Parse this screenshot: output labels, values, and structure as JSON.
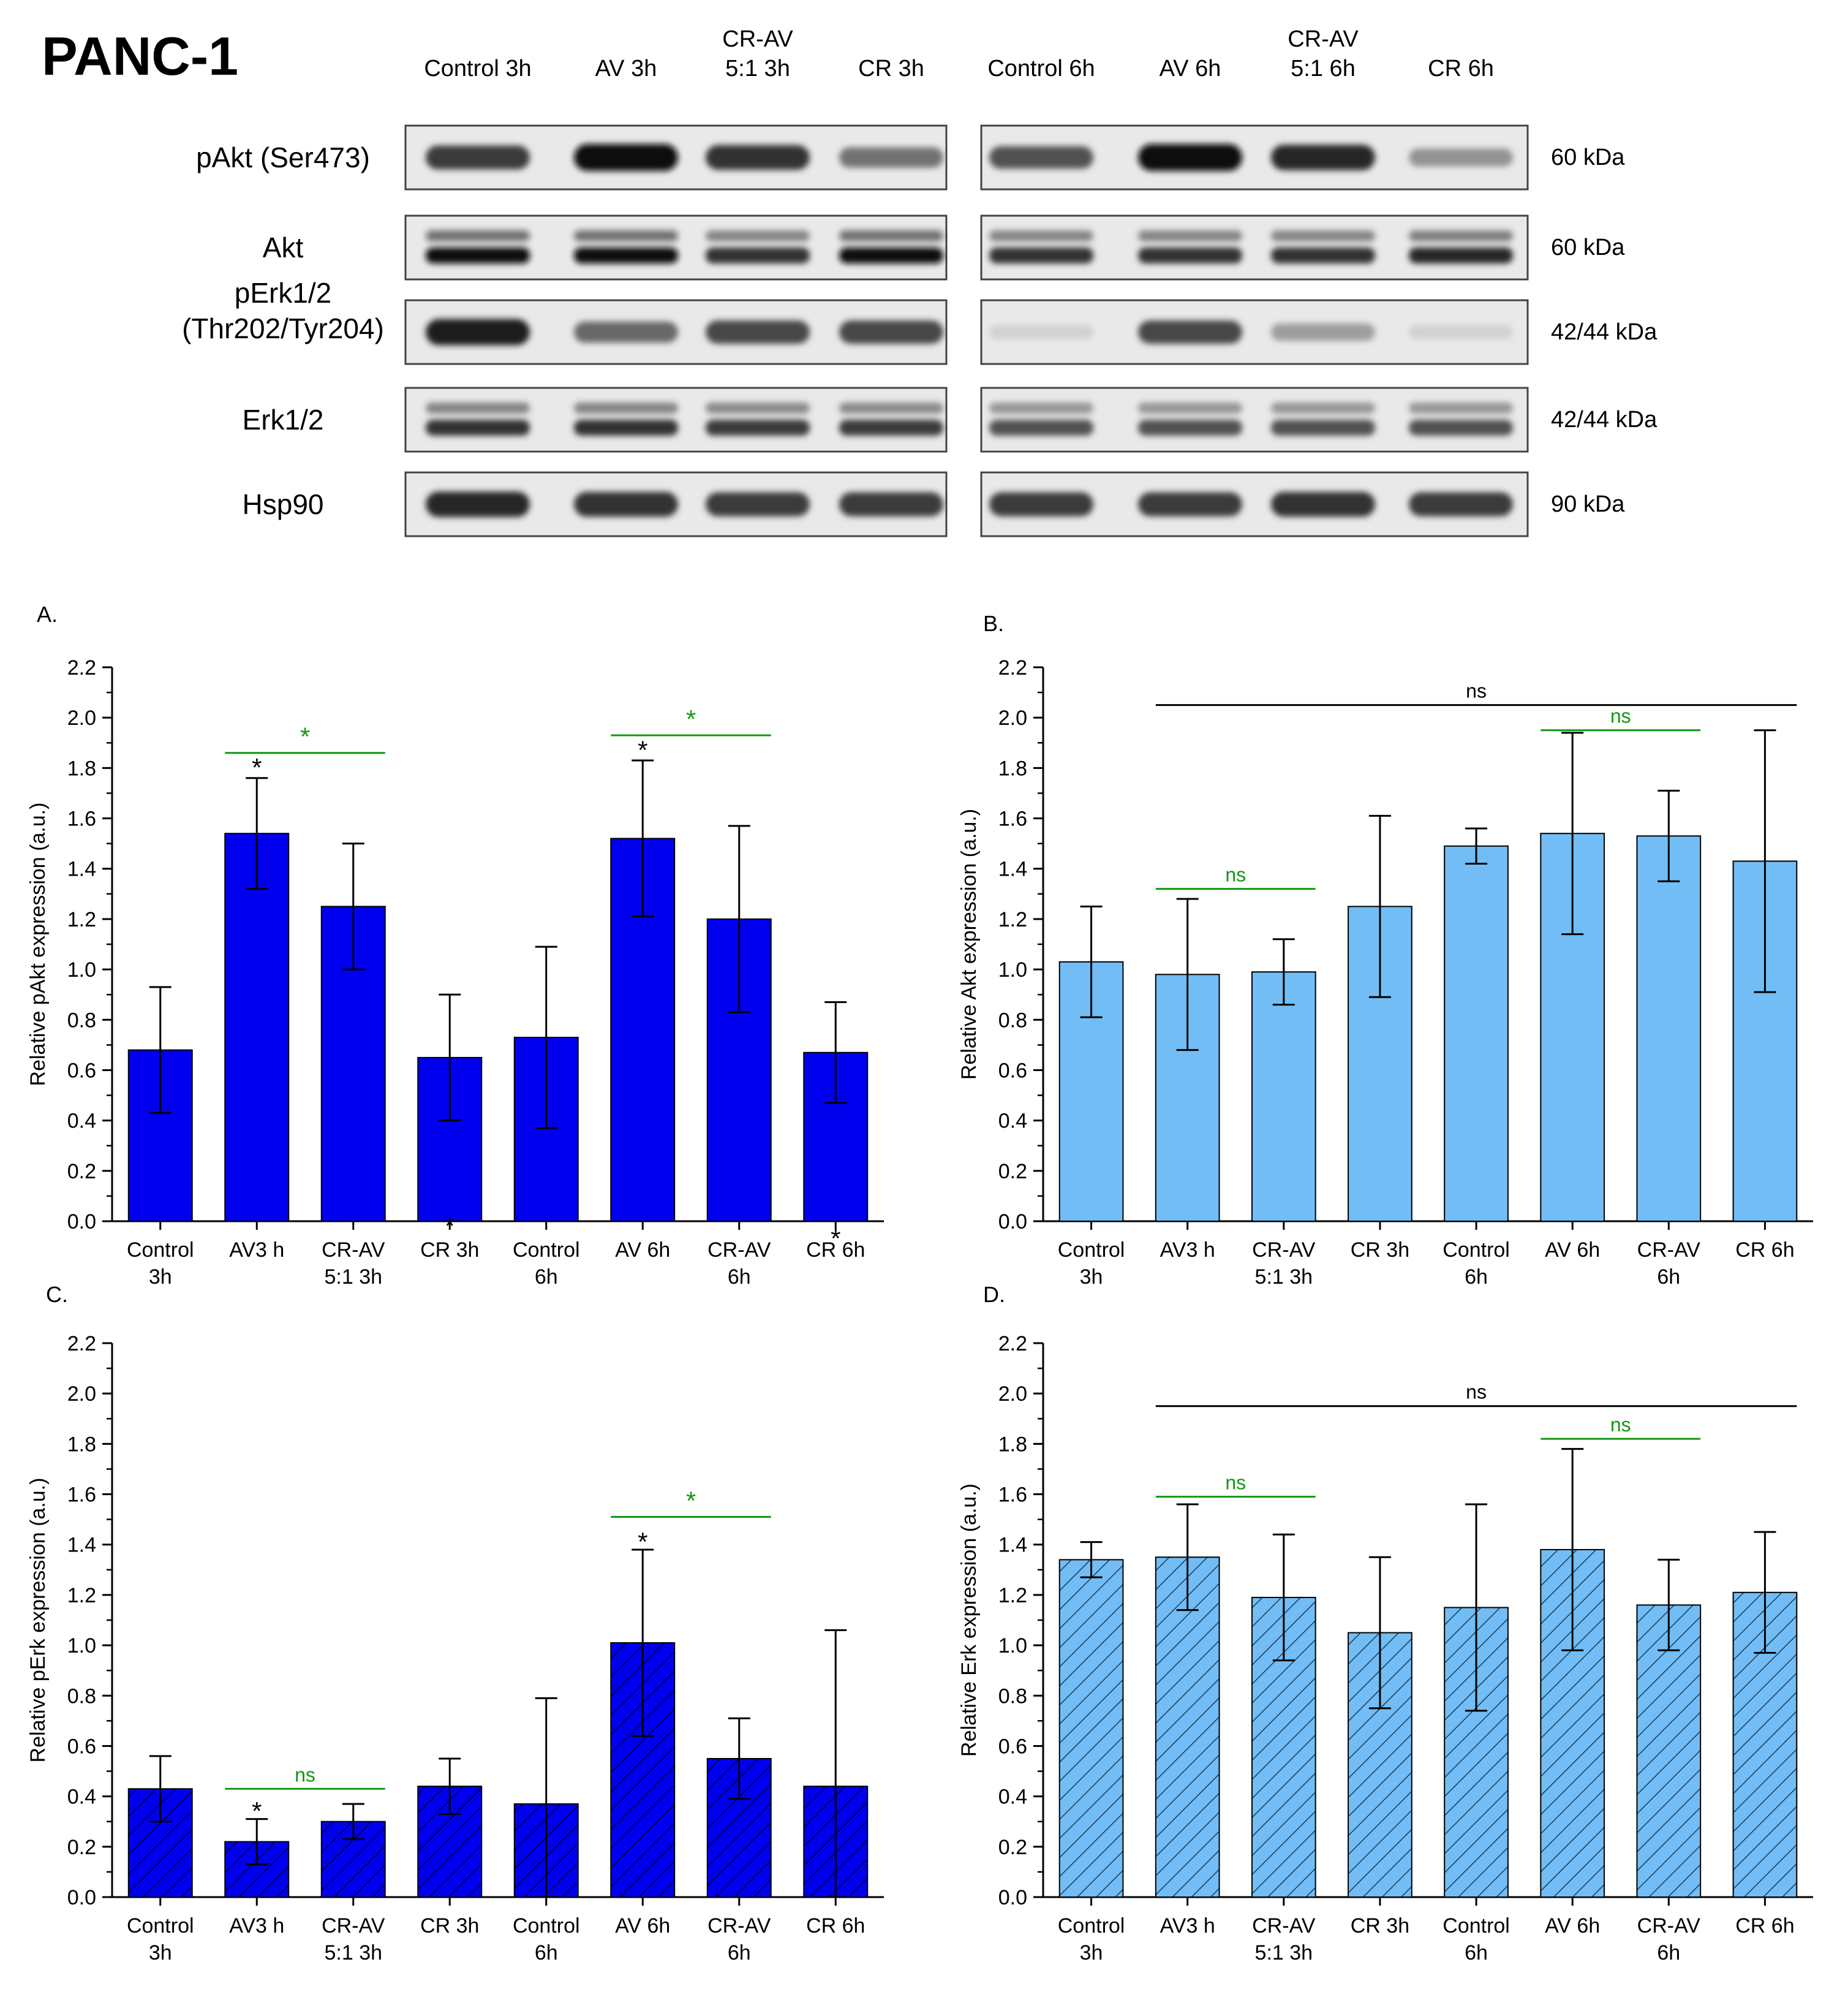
{
  "figure_title": "PANC-1",
  "blot": {
    "lane_labels": [
      [
        "Control 3h"
      ],
      [
        "AV 3h"
      ],
      [
        "CR-AV",
        "5:1 3h"
      ],
      [
        "CR 3h"
      ],
      [
        "Control 6h"
      ],
      [
        "AV 6h"
      ],
      [
        "CR-AV",
        "5:1 6h"
      ],
      [
        "CR 6h"
      ]
    ],
    "rows": [
      {
        "label": [
          "pAkt (Ser473)"
        ],
        "kda": "60 kDa",
        "bands": [
          0.8,
          1.0,
          0.85,
          0.55,
          0.7,
          1.0,
          0.9,
          0.4
        ],
        "doublet": false
      },
      {
        "label": [
          "Akt"
        ],
        "kda": "60 kDa",
        "bands": [
          1.0,
          1.0,
          0.85,
          1.0,
          0.85,
          0.85,
          0.85,
          0.9
        ],
        "doublet": true
      },
      {
        "label": [
          "pErk1/2",
          "(Thr202/Tyr204)"
        ],
        "kda": "42/44 kDa",
        "bands": [
          0.95,
          0.6,
          0.75,
          0.75,
          0.12,
          0.75,
          0.35,
          0.12
        ],
        "doublet": false
      },
      {
        "label": [
          "Erk1/2"
        ],
        "kda": "42/44 kDa",
        "bands": [
          0.85,
          0.85,
          0.8,
          0.8,
          0.7,
          0.7,
          0.7,
          0.7
        ],
        "doublet": true
      },
      {
        "label": [
          "Hsp90"
        ],
        "kda": "90 kDa",
        "bands": [
          0.9,
          0.85,
          0.8,
          0.8,
          0.8,
          0.8,
          0.85,
          0.8
        ],
        "doublet": false
      }
    ]
  },
  "chart_data": [
    {
      "panel": "A.",
      "type": "bar",
      "ylabel": "Relative pAkt expression (a.u.)",
      "xlabel": "",
      "ylim": [
        0,
        2.2
      ],
      "yticks": [
        "0.0",
        "0.2",
        "0.4",
        "0.6",
        "0.8",
        "1.0",
        "1.2",
        "1.4",
        "1.6",
        "1.8",
        "2.0",
        "2.2"
      ],
      "categories": [
        [
          "Control",
          "3h"
        ],
        [
          "AV3 h"
        ],
        [
          "CR-AV",
          "5:1 3h"
        ],
        [
          "CR 3h"
        ],
        [
          "Control",
          "6h"
        ],
        [
          "AV 6h"
        ],
        [
          "CR-AV",
          "6h"
        ],
        [
          "CR 6h"
        ]
      ],
      "values": [
        0.68,
        1.54,
        1.25,
        0.65,
        0.73,
        1.52,
        1.2,
        0.67
      ],
      "errors": [
        0.25,
        0.22,
        0.25,
        0.25,
        0.36,
        0.31,
        0.37,
        0.2
      ],
      "fill_color": "#0000ee",
      "hatched": false,
      "stars": [
        {
          "bar": 1,
          "level": 1.82,
          "text": "*"
        },
        {
          "bar": 5,
          "level": 1.89,
          "text": "*"
        },
        {
          "bar": 3,
          "level": 0.0,
          "text": "*"
        },
        {
          "bar": 7,
          "level": -0.05,
          "text": "*"
        }
      ],
      "brackets": [
        {
          "from": 1,
          "to": 2,
          "level": 1.86,
          "label": "*",
          "color": "#119911"
        },
        {
          "from": 5,
          "to": 6,
          "level": 1.93,
          "label": "*",
          "color": "#119911"
        }
      ]
    },
    {
      "panel": "B.",
      "type": "bar",
      "ylabel": "Relative Akt expression (a.u.)",
      "xlabel": "",
      "ylim": [
        0,
        2.2
      ],
      "yticks": [
        "0.0",
        "0.2",
        "0.4",
        "0.6",
        "0.8",
        "1.0",
        "1.2",
        "1.4",
        "1.6",
        "1.8",
        "2.0",
        "2.2"
      ],
      "categories": [
        [
          "Control",
          "3h"
        ],
        [
          "AV3 h"
        ],
        [
          "CR-AV",
          "5:1 3h"
        ],
        [
          "CR 3h"
        ],
        [
          "Control",
          "6h"
        ],
        [
          "AV 6h"
        ],
        [
          "CR-AV",
          "6h"
        ],
        [
          "CR 6h"
        ]
      ],
      "values": [
        1.03,
        0.98,
        0.99,
        1.25,
        1.49,
        1.54,
        1.53,
        1.43
      ],
      "errors": [
        0.22,
        0.3,
        0.13,
        0.36,
        0.07,
        0.4,
        0.18,
        0.52
      ],
      "fill_color": "#72bdf5",
      "hatched": false,
      "stars": [],
      "brackets": [
        {
          "from": 1,
          "to": 7,
          "level": 2.05,
          "label": "ns",
          "color": "#000000"
        },
        {
          "from": 5,
          "to": 6,
          "level": 1.95,
          "label": "ns",
          "color": "#119911"
        },
        {
          "from": 1,
          "to": 2,
          "level": 1.32,
          "label": "ns",
          "color": "#119911"
        }
      ]
    },
    {
      "panel": "C.",
      "type": "bar",
      "ylabel": "Relative pErk expression (a.u.)",
      "xlabel": "",
      "ylim": [
        0,
        2.2
      ],
      "yticks": [
        "0.0",
        "0.2",
        "0.4",
        "0.6",
        "0.8",
        "1.0",
        "1.2",
        "1.4",
        "1.6",
        "1.8",
        "2.0",
        "2.2"
      ],
      "categories": [
        [
          "Control",
          "3h"
        ],
        [
          "AV3 h"
        ],
        [
          "CR-AV",
          "5:1 3h"
        ],
        [
          "CR 3h"
        ],
        [
          "Control",
          "6h"
        ],
        [
          "AV 6h"
        ],
        [
          "CR-AV",
          "6h"
        ],
        [
          "CR 6h"
        ]
      ],
      "values": [
        0.43,
        0.22,
        0.3,
        0.44,
        0.37,
        1.01,
        0.55,
        0.44
      ],
      "errors": [
        0.13,
        0.09,
        0.07,
        0.11,
        0.42,
        0.37,
        0.16,
        0.62
      ],
      "fill_color": "#0000ee",
      "hatched": true,
      "stars": [
        {
          "bar": 1,
          "level": 0.36,
          "text": "*"
        },
        {
          "bar": 5,
          "level": 1.43,
          "text": "*"
        }
      ],
      "brackets": [
        {
          "from": 1,
          "to": 2,
          "level": 0.43,
          "label": "ns",
          "color": "#119911"
        },
        {
          "from": 5,
          "to": 6,
          "level": 1.51,
          "label": "*",
          "color": "#119911"
        }
      ]
    },
    {
      "panel": "D.",
      "type": "bar",
      "ylabel": "Relative Erk expression (a.u.)",
      "xlabel": "",
      "ylim": [
        0,
        2.2
      ],
      "yticks": [
        "0.0",
        "0.2",
        "0.4",
        "0.6",
        "0.8",
        "1.0",
        "1.2",
        "1.4",
        "1.6",
        "1.8",
        "2.0",
        "2.2"
      ],
      "categories": [
        [
          "Control",
          "3h"
        ],
        [
          "AV3 h"
        ],
        [
          "CR-AV",
          "5:1 3h"
        ],
        [
          "CR 3h"
        ],
        [
          "Control",
          "6h"
        ],
        [
          "AV 6h"
        ],
        [
          "CR-AV",
          "6h"
        ],
        [
          "CR 6h"
        ]
      ],
      "values": [
        1.34,
        1.35,
        1.19,
        1.05,
        1.15,
        1.38,
        1.16,
        1.21
      ],
      "errors": [
        0.07,
        0.21,
        0.25,
        0.3,
        0.41,
        0.4,
        0.18,
        0.24
      ],
      "fill_color": "#72bdf5",
      "hatched": true,
      "stars": [],
      "brackets": [
        {
          "from": 1,
          "to": 7,
          "level": 1.95,
          "label": "ns",
          "color": "#000000"
        },
        {
          "from": 5,
          "to": 6,
          "level": 1.82,
          "label": "ns",
          "color": "#119911"
        },
        {
          "from": 1,
          "to": 2,
          "level": 1.59,
          "label": "ns",
          "color": "#119911"
        }
      ]
    }
  ]
}
